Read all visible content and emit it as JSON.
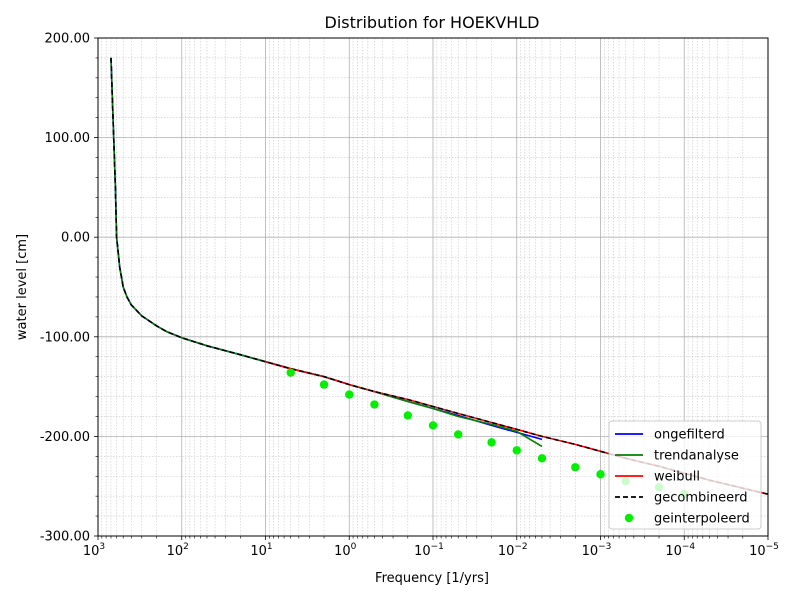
{
  "chart_data": {
    "type": "line",
    "title": "Distribution for HOEKVHLD",
    "xlabel": "Frequency [1/yrs]",
    "ylabel": "water level [cm]",
    "x_scale": "log",
    "x_reversed": true,
    "xlim": [
      1000,
      1e-05
    ],
    "ylim": [
      -300,
      200
    ],
    "grid": true,
    "x_ticks": [
      {
        "value": 1000,
        "base": "10",
        "exp": "3"
      },
      {
        "value": 100,
        "base": "10",
        "exp": "2"
      },
      {
        "value": 10,
        "base": "10",
        "exp": "1"
      },
      {
        "value": 1,
        "base": "10",
        "exp": "0"
      },
      {
        "value": 0.1,
        "base": "10",
        "exp": "−1"
      },
      {
        "value": 0.01,
        "base": "10",
        "exp": "−2"
      },
      {
        "value": 0.001,
        "base": "10",
        "exp": "−3"
      },
      {
        "value": 0.0001,
        "base": "10",
        "exp": "−4"
      },
      {
        "value": 1e-05,
        "base": "10",
        "exp": "−5"
      }
    ],
    "y_ticks": [
      {
        "value": 200,
        "label": "200.00"
      },
      {
        "value": 100,
        "label": "100.00"
      },
      {
        "value": 0,
        "label": "0.00"
      },
      {
        "value": -100,
        "label": "-100.00"
      },
      {
        "value": -200,
        "label": "-200.00"
      },
      {
        "value": -300,
        "label": "-300.00"
      }
    ],
    "legend_position": "bottom-right",
    "series": [
      {
        "name": "ongefilterd",
        "color": "#0000ff",
        "style": "solid",
        "x": [
          700,
          650,
          620,
          600,
          550,
          500,
          450,
          400,
          300,
          200,
          150,
          100,
          50,
          20,
          10,
          5,
          2,
          1,
          0.5,
          0.2,
          0.1,
          0.05,
          0.02,
          0.01,
          0.005
        ],
        "y": [
          180,
          100,
          50,
          0,
          -30,
          -50,
          -60,
          -68,
          -79,
          -89,
          -95,
          -101,
          -109,
          -118,
          -125,
          -132,
          -140,
          -148,
          -155,
          -165,
          -172,
          -179,
          -189,
          -196,
          -203
        ]
      },
      {
        "name": "trendanalyse",
        "color": "#008000",
        "style": "solid",
        "x": [
          700,
          650,
          620,
          600,
          550,
          500,
          450,
          400,
          300,
          200,
          150,
          100,
          50,
          20,
          10,
          5,
          2,
          1,
          0.5,
          0.2,
          0.1,
          0.05,
          0.02,
          0.01,
          0.005
        ],
        "y": [
          180,
          100,
          50,
          0,
          -30,
          -50,
          -60,
          -68,
          -79,
          -89,
          -95,
          -101,
          -109,
          -118,
          -125,
          -132,
          -140,
          -148,
          -155,
          -165,
          -172,
          -180,
          -188,
          -195,
          -210
        ]
      },
      {
        "name": "weibull",
        "color": "#ff0000",
        "style": "solid",
        "x": [
          10,
          5,
          2,
          1,
          0.5,
          0.2,
          0.1,
          0.05,
          0.02,
          0.01,
          0.005,
          0.002,
          0.001,
          0.0005,
          0.0002,
          0.0001,
          5e-05,
          2e-05,
          1e-05
        ],
        "y": [
          -125,
          -132,
          -140,
          -148,
          -155,
          -163,
          -170,
          -177,
          -186,
          -193,
          -200,
          -208,
          -215,
          -222,
          -230,
          -237,
          -244,
          -252,
          -258
        ]
      },
      {
        "name": "gecombineerd",
        "color": "#000000",
        "style": "dashed",
        "x": [
          700,
          650,
          620,
          600,
          550,
          500,
          450,
          400,
          300,
          200,
          150,
          100,
          50,
          20,
          10,
          5,
          2,
          1,
          0.5,
          0.2,
          0.1,
          0.05,
          0.02,
          0.01,
          0.005,
          0.002,
          0.001,
          0.0005,
          0.0002,
          0.0001,
          5e-05,
          2e-05,
          1e-05
        ],
        "y": [
          180,
          100,
          50,
          0,
          -30,
          -50,
          -60,
          -68,
          -79,
          -89,
          -95,
          -101,
          -109,
          -118,
          -125,
          -132,
          -140,
          -148,
          -155,
          -163,
          -170,
          -177,
          -186,
          -193,
          -200,
          -208,
          -215,
          -222,
          -230,
          -237,
          -244,
          -252,
          -258
        ]
      },
      {
        "name": "geinterpoleerd",
        "color": "#00ee00",
        "style": "markers",
        "x": [
          5,
          2,
          1,
          0.5,
          0.2,
          0.1,
          0.05,
          0.02,
          0.01,
          0.005,
          0.002,
          0.001,
          0.0005,
          0.0002,
          0.0001
        ],
        "y": [
          -136,
          -148,
          -158,
          -168,
          -179,
          -189,
          -198,
          -206,
          -214,
          -222,
          -231,
          -238,
          -245,
          -251,
          -258
        ]
      }
    ]
  }
}
